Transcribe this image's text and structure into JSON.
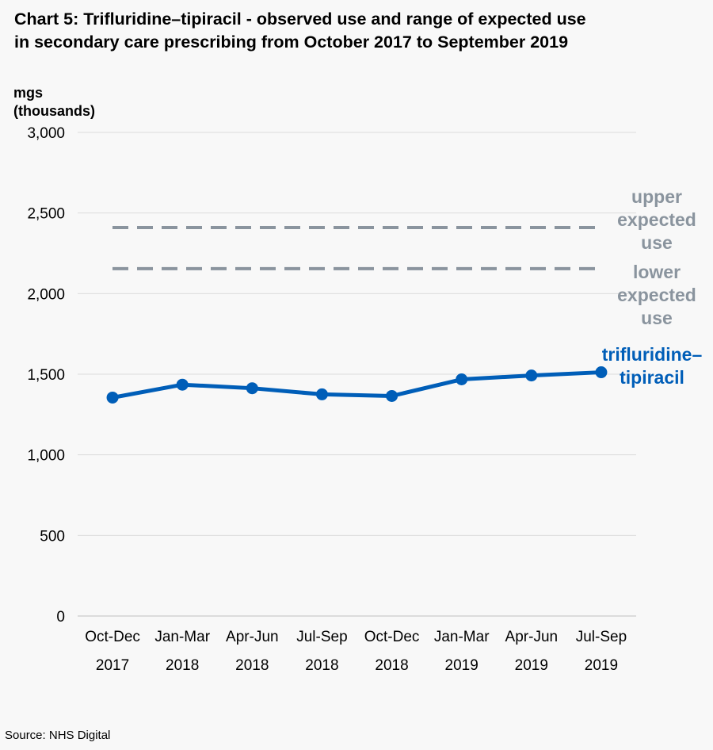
{
  "title_line1": "Chart 5: Trifluridine–tipiracil - observed use and range of expected use",
  "title_line2": "in secondary care prescribing from October 2017 to September 2019",
  "ylabel_line1": "mgs",
  "ylabel_line2": "(thousands)",
  "source": "Source: NHS Digital",
  "chart_data": {
    "type": "line",
    "title": "Chart 5: Trifluridine–tipiracil - observed use and range of expected use in secondary care prescribing from October 2017 to September 2019",
    "ylabel": "mgs (thousands)",
    "ylim": [
      0,
      3000
    ],
    "yticks": [
      0,
      500,
      1000,
      1500,
      2000,
      2500,
      3000
    ],
    "ytick_labels": [
      "0",
      "500",
      "1,000",
      "1,500",
      "2,000",
      "2,500",
      "3,000"
    ],
    "grid": true,
    "categories": [
      [
        "Oct-Dec",
        "2017"
      ],
      [
        "Jan-Mar",
        "2018"
      ],
      [
        "Apr-Jun",
        "2018"
      ],
      [
        "Jul-Sep",
        "2018"
      ],
      [
        "Oct-Dec",
        "2018"
      ],
      [
        "Jan-Mar",
        "2019"
      ],
      [
        "Apr-Jun",
        "2019"
      ],
      [
        "Jul-Sep",
        "2019"
      ]
    ],
    "series": [
      {
        "name": "trifluridine–tipiracil",
        "name_lines": [
          "trifluridine–",
          "tipiracil"
        ],
        "values": [
          1355,
          1435,
          1413,
          1375,
          1365,
          1468,
          1492,
          1512
        ],
        "color": "#005eb8",
        "style": "solid-markers"
      }
    ],
    "reference_lines": [
      {
        "name": "upper expected use",
        "name_lines": [
          "upper",
          "expected",
          "use"
        ],
        "value": 2410,
        "color": "#8a949e",
        "style": "dashed"
      },
      {
        "name": "lower expected use",
        "name_lines": [
          "lower",
          "expected",
          "use"
        ],
        "value": 2155,
        "color": "#8a949e",
        "style": "dashed"
      }
    ]
  }
}
